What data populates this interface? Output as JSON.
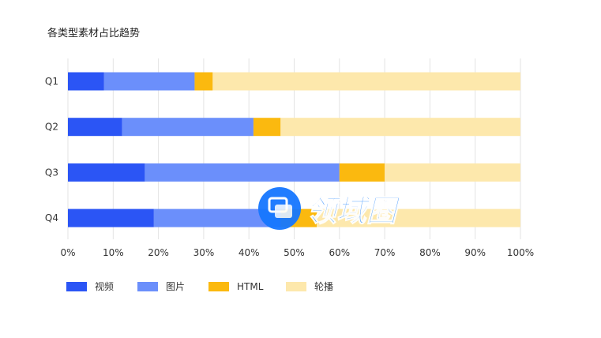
{
  "chart_data": {
    "type": "bar",
    "orientation": "horizontal",
    "stacked": "percent",
    "title": "各类型素材占比趋势",
    "categories": [
      "Q1",
      "Q2",
      "Q3",
      "Q4"
    ],
    "series": [
      {
        "name": "视频",
        "color": "#2b55f5",
        "values": [
          8,
          12,
          17,
          19
        ]
      },
      {
        "name": "图片",
        "color": "#6b8ffb",
        "values": [
          20,
          29,
          43,
          28
        ]
      },
      {
        "name": "HTML",
        "color": "#fbb90f",
        "values": [
          4,
          6,
          10,
          8
        ]
      },
      {
        "name": "轮播",
        "color": "#fde8ac",
        "values": [
          68,
          53,
          30,
          45
        ]
      }
    ],
    "xlim": [
      0,
      100
    ],
    "xticks": [
      "0%",
      "10%",
      "20%",
      "30%",
      "40%",
      "50%",
      "60%",
      "70%",
      "80%",
      "90%",
      "100%"
    ],
    "grid": "vertical",
    "legend": "bottom-left"
  },
  "watermark": {
    "text": "领域圈",
    "colors": {
      "circle": "#1677ff",
      "text": "#4096ff"
    }
  }
}
